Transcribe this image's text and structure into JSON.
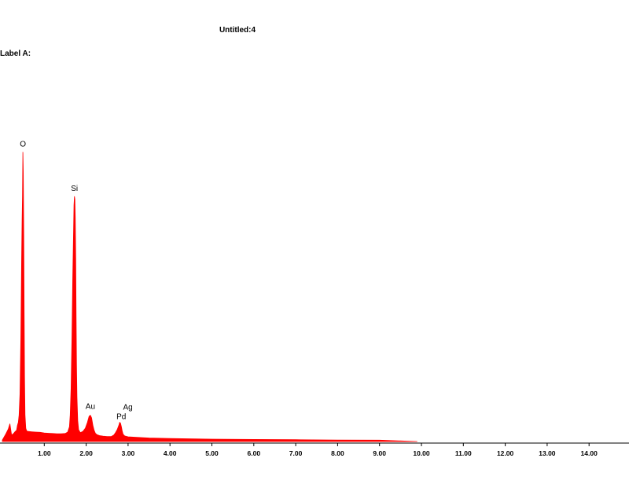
{
  "window": {
    "title": "Untitled:4",
    "label": "Label A:"
  },
  "chart_data": {
    "type": "area",
    "title": "Untitled:4",
    "subtitle": "Label A:",
    "xlabel": "",
    "ylabel": "",
    "xlim": [
      0.0,
      15.0
    ],
    "ylim": [
      0,
      100
    ],
    "grid": false,
    "legend": "none",
    "series_color": "#ff0000",
    "axis_color": "#000000",
    "x_ticks": [
      "1.00",
      "2.00",
      "3.00",
      "4.00",
      "5.00",
      "6.00",
      "7.00",
      "8.00",
      "9.00",
      "10.00",
      "11.00",
      "12.00",
      "13.00",
      "14.00"
    ],
    "x_tick_values": [
      1,
      2,
      3,
      4,
      5,
      6,
      7,
      8,
      9,
      10,
      11,
      12,
      13,
      14
    ],
    "series": [
      {
        "x": [
          0.0,
          0.08,
          0.14,
          0.18,
          0.22,
          0.26,
          0.3,
          0.34,
          0.36,
          0.38,
          0.4,
          0.42,
          0.44,
          0.46,
          0.47,
          0.48,
          0.49,
          0.5,
          0.51,
          0.52,
          0.53,
          0.54,
          0.56,
          0.58,
          0.62,
          0.7,
          0.8,
          0.9,
          1.0,
          1.1,
          1.2,
          1.3,
          1.4,
          1.5,
          1.56,
          1.6,
          1.62,
          1.64,
          1.66,
          1.68,
          1.7,
          1.71,
          1.72,
          1.73,
          1.74,
          1.75,
          1.76,
          1.77,
          1.78,
          1.8,
          1.82,
          1.86,
          1.92,
          1.98,
          2.03,
          2.07,
          2.1,
          2.13,
          2.16,
          2.19,
          2.22,
          2.26,
          2.32,
          2.4,
          2.5,
          2.6,
          2.66,
          2.7,
          2.74,
          2.78,
          2.8,
          2.82,
          2.84,
          2.86,
          2.88,
          2.92,
          3.0,
          3.2,
          3.5,
          4.0,
          5.0,
          6.0,
          7.0,
          8.0,
          9.0,
          9.9
        ],
        "y": [
          0.5,
          2.5,
          4.2,
          6.0,
          2.2,
          2.6,
          3.3,
          3.8,
          5.5,
          6.5,
          9.0,
          16.0,
          35.0,
          62.0,
          75.0,
          83.0,
          98.0,
          91.0,
          70.0,
          44.0,
          22.0,
          9.0,
          4.5,
          3.6,
          3.4,
          3.3,
          3.2,
          3.1,
          2.9,
          2.8,
          2.7,
          2.6,
          2.6,
          2.7,
          3.2,
          5.0,
          9.0,
          18.0,
          35.0,
          55.0,
          72.0,
          80.0,
          83.0,
          82.0,
          76.0,
          62.0,
          42.0,
          26.0,
          15.0,
          7.0,
          4.0,
          3.0,
          3.4,
          4.5,
          6.5,
          8.5,
          8.9,
          8.0,
          5.5,
          3.8,
          2.8,
          2.3,
          2.0,
          1.8,
          1.7,
          1.7,
          2.2,
          3.0,
          4.0,
          5.5,
          6.5,
          6.2,
          5.0,
          3.6,
          2.5,
          1.9,
          1.6,
          1.4,
          1.2,
          1.0,
          0.8,
          0.7,
          0.6,
          0.5,
          0.45,
          0.0
        ]
      }
    ],
    "annotations": [
      {
        "text": "O",
        "x": 0.49,
        "y": 98.0
      },
      {
        "text": "Si",
        "x": 1.72,
        "y": 83.0
      },
      {
        "text": "Au",
        "x": 2.1,
        "y": 8.9
      },
      {
        "text": "Pd",
        "x": 2.8,
        "y": 6.5
      },
      {
        "text": "Ag",
        "x": 2.92,
        "y": 6.5
      }
    ]
  }
}
